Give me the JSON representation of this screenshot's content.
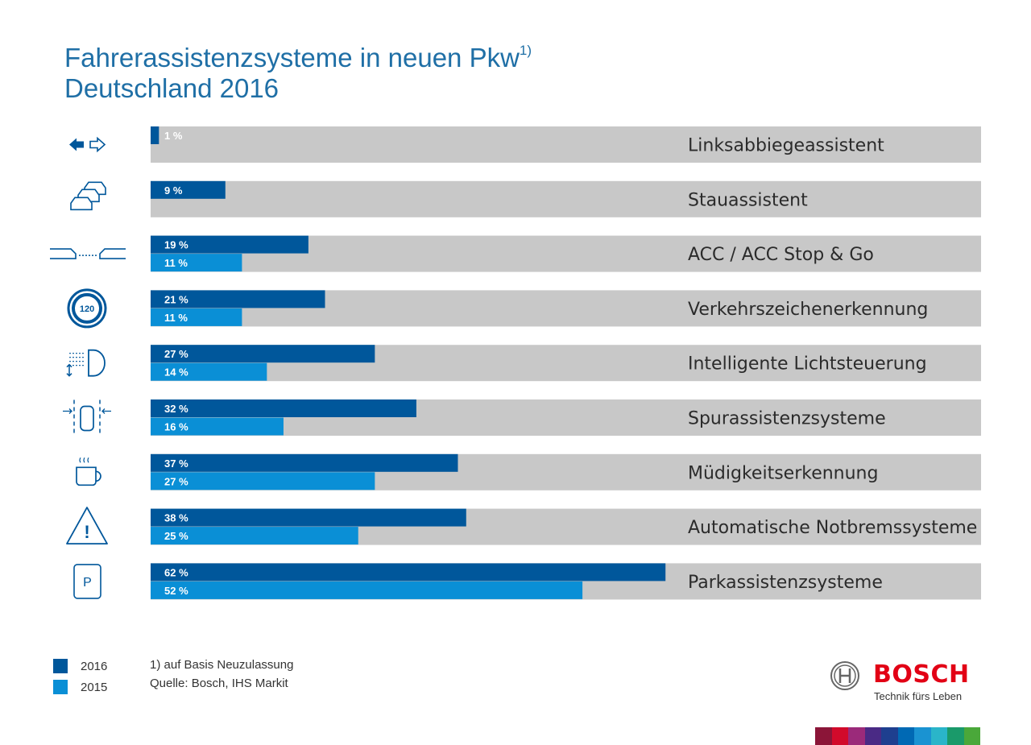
{
  "title": {
    "line1": "Fahrerassistenzsysteme in neuen Pkw",
    "sup": "1)",
    "line2": "Deutschland 2016"
  },
  "chart_data": {
    "type": "bar",
    "orientation": "horizontal",
    "categories": [
      "Linksabbiegeassistent",
      "Stauassistent",
      "ACC / ACC Stop & Go",
      "Verkehrszeichenerkennung",
      "Intelligente Lichtsteuerung",
      "Spurassistenzsysteme",
      "Müdigkeitserkennung",
      "Automatische Notbremssysteme",
      "Parkassistenzsysteme"
    ],
    "icons": [
      "turn-arrows-icon",
      "traffic-jam-cars-icon",
      "acc-distance-icon",
      "speed-sign-120-icon",
      "headlight-icon",
      "lane-keeping-icon",
      "coffee-cup-icon",
      "warning-triangle-icon",
      "parking-sign-icon"
    ],
    "icon_sign_text": "120",
    "icon_parking_text": "P",
    "icon_warning_text": "!",
    "series": [
      {
        "name": "2016",
        "color": "#00579b",
        "values": [
          1,
          9,
          19,
          21,
          27,
          32,
          37,
          38,
          62
        ],
        "labels": [
          "1 %",
          "9 %",
          "19 %",
          "21 %",
          "27 %",
          "32 %",
          "37 %",
          "38 %",
          "62 %"
        ]
      },
      {
        "name": "2015",
        "color": "#0a8fd6",
        "values": [
          null,
          null,
          11,
          11,
          14,
          16,
          27,
          25,
          52
        ],
        "labels": [
          null,
          null,
          "11 %",
          "11 %",
          "14 %",
          "16 %",
          "27 %",
          "25 %",
          "52 %"
        ]
      }
    ],
    "xlim": [
      0,
      100
    ],
    "track_color": "#c8c8c8",
    "legend": "bottom-left",
    "grid": false
  },
  "legend": {
    "items": [
      {
        "label": "2016",
        "color": "#00579b"
      },
      {
        "label": "2015",
        "color": "#0a8fd6"
      }
    ]
  },
  "footnote": {
    "line1": "1) auf Basis Neuzulassung",
    "line2": "Quelle: Bosch, IHS Markit"
  },
  "brand": {
    "name": "BOSCH",
    "tagline": "Technik fürs Leben",
    "color": "#e20015",
    "stripe_colors": [
      "#8b1538",
      "#d20a2b",
      "#9b2a7a",
      "#4a2a85",
      "#1e3f8f",
      "#0069b4",
      "#1a93d2",
      "#2ab5c9",
      "#1a9a6a",
      "#4aa83a"
    ]
  }
}
